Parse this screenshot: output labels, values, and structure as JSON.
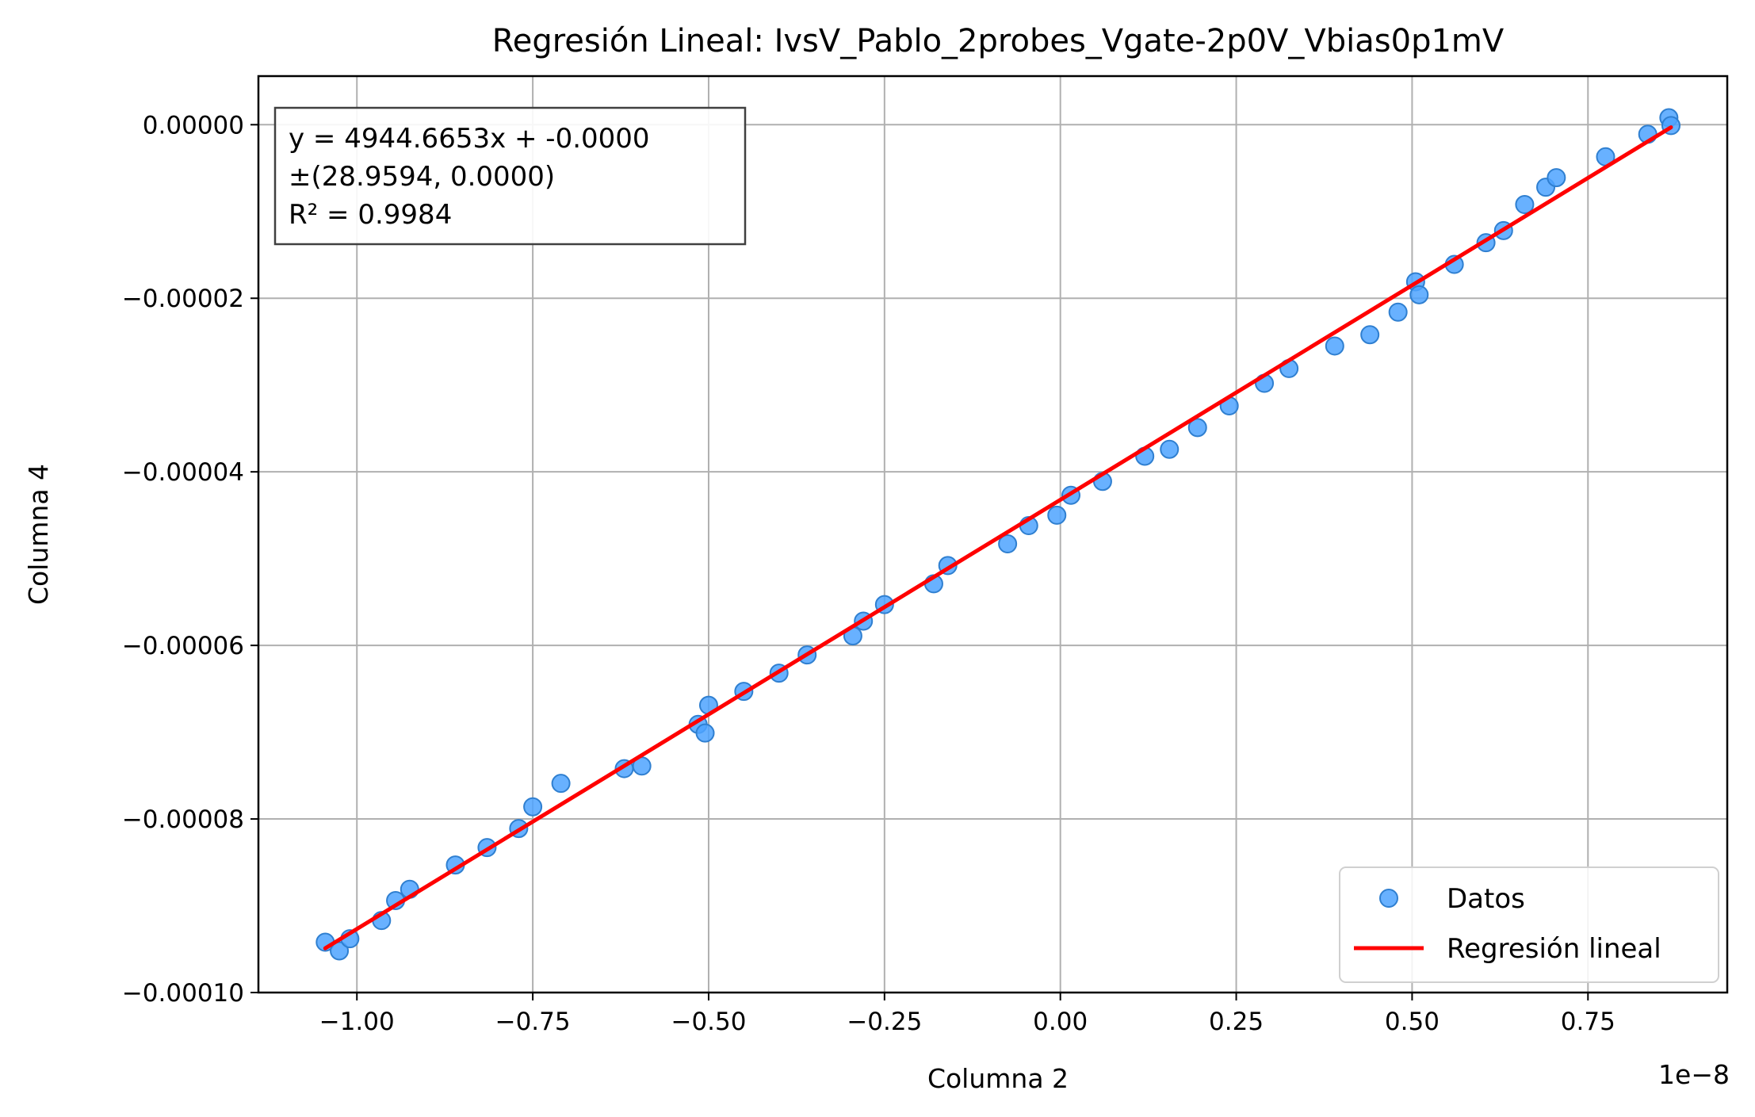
{
  "chart_data": {
    "type": "scatter",
    "title": "Regresión Lineal: IvsV_Pablo_2probes_Vgate-2p0V_Vbias0p1mV",
    "xlabel": "Columna 2",
    "ylabel": "Columna 4",
    "x_offset_label": "1e−8",
    "xlim": [
      -1.14e-08,
      9.48e-09
    ],
    "ylim": [
      -0.0001,
      5.6e-06
    ],
    "x_ticks": [
      -1e-08,
      -7.5e-09,
      -5e-09,
      -2.5e-09,
      0.0,
      2.5e-09,
      5e-09,
      7.5e-09
    ],
    "x_tick_labels": [
      "−1.00",
      "−0.75",
      "−0.50",
      "−0.25",
      "0.00",
      "0.25",
      "0.50",
      "0.75"
    ],
    "y_ticks": [
      0.0,
      -2e-05,
      -4e-05,
      -6e-05,
      -8e-05,
      -0.0001
    ],
    "y_tick_labels": [
      "0.00000",
      "−0.00002",
      "−0.00004",
      "−0.00006",
      "−0.00008",
      "−0.00010"
    ],
    "grid": true,
    "legend_position": "bottom-right",
    "legend": [
      "Datos",
      "Regresión lineal"
    ],
    "colors": {
      "points": "#4da3ff",
      "points_edge": "#2f7fd0",
      "line": "#ff0000",
      "annotation": "#ff0000",
      "grid": "#b0b0b0"
    },
    "annotation": [
      "y = 4944.6653x + -0.0000",
      "±(28.9594, 0.0000)",
      "R² = 0.9984"
    ],
    "series": [
      {
        "name": "Datos",
        "kind": "scatter",
        "x": [
          -1.045e-08,
          -1.025e-08,
          -1.01e-08,
          -9.65e-09,
          -9.45e-09,
          -9.25e-09,
          -8.6e-09,
          -8.15e-09,
          -7.7e-09,
          -7.5e-09,
          -7.1e-09,
          -6.2e-09,
          -5.95e-09,
          -5.15e-09,
          -5.05e-09,
          -5e-09,
          -4.5e-09,
          -4e-09,
          -3.6e-09,
          -2.95e-09,
          -2.8e-09,
          -2.5e-09,
          -1.8e-09,
          -1.6e-09,
          -7.5e-10,
          -4.5e-10,
          -5e-11,
          1.5e-10,
          6e-10,
          1.2e-09,
          1.55e-09,
          1.95e-09,
          2.4e-09,
          2.9e-09,
          3.25e-09,
          3.9e-09,
          4.4e-09,
          4.8e-09,
          5.05e-09,
          5.1e-09,
          5.6e-09,
          6.05e-09,
          6.3e-09,
          6.6e-09,
          6.9e-09,
          7.05e-09,
          7.75e-09,
          8.35e-09,
          8.65e-09,
          8.68e-09
        ],
        "y": [
          -9.42e-05,
          -9.52e-05,
          -9.38e-05,
          -9.17e-05,
          -8.94e-05,
          -8.81e-05,
          -8.53e-05,
          -8.33e-05,
          -8.11e-05,
          -7.86e-05,
          -7.59e-05,
          -7.42e-05,
          -7.39e-05,
          -6.91e-05,
          -7.01e-05,
          -6.69e-05,
          -6.53e-05,
          -6.32e-05,
          -6.11e-05,
          -5.89e-05,
          -5.72e-05,
          -5.53e-05,
          -5.29e-05,
          -5.08e-05,
          -4.83e-05,
          -4.62e-05,
          -4.5e-05,
          -4.27e-05,
          -4.11e-05,
          -3.82e-05,
          -3.74e-05,
          -3.49e-05,
          -3.24e-05,
          -2.98e-05,
          -2.81e-05,
          -2.55e-05,
          -2.42e-05,
          -2.16e-05,
          -1.81e-05,
          -1.96e-05,
          -1.61e-05,
          -1.36e-05,
          -1.22e-05,
          -9.2e-06,
          -7.2e-06,
          -6.1e-06,
          -3.7e-06,
          -1.1e-06,
          8e-07,
          -1e-07
        ]
      },
      {
        "name": "Regresión lineal",
        "kind": "line",
        "x": [
          -1.045e-08,
          8.68e-09
        ],
        "y": [
          -9.49e-05,
          -3e-07
        ]
      }
    ]
  }
}
